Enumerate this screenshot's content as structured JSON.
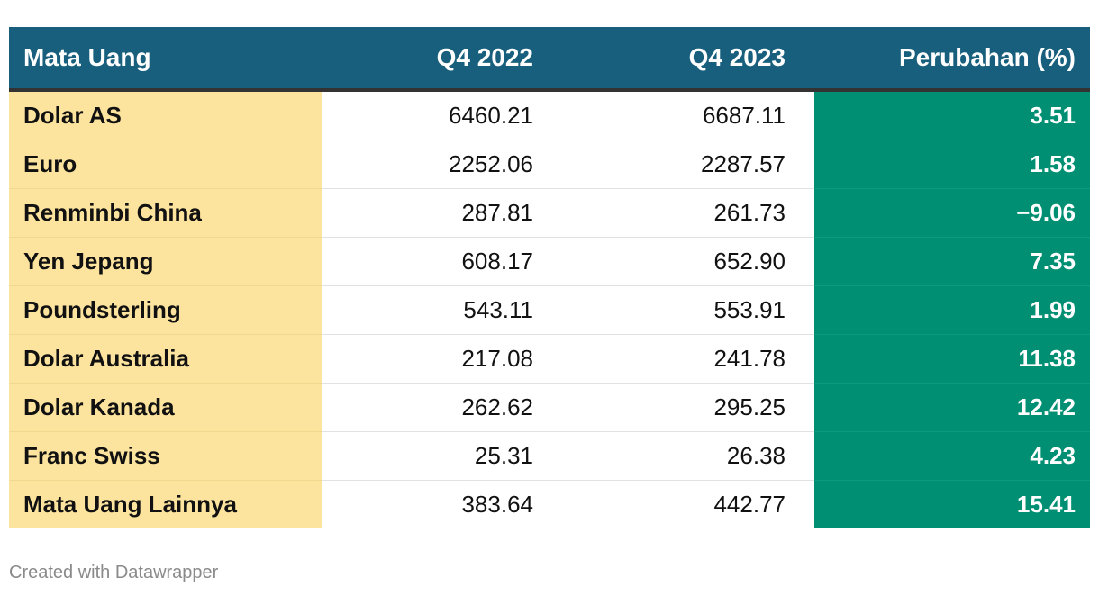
{
  "chart_data": {
    "type": "table",
    "columns": [
      "Mata Uang",
      "Q4 2022",
      "Q4 2023",
      "Perubahan (%)"
    ],
    "rows": [
      [
        "Dolar AS",
        "6460.21",
        "6687.11",
        "3.51"
      ],
      [
        "Euro",
        "2252.06",
        "2287.57",
        "1.58"
      ],
      [
        "Renminbi China",
        "287.81",
        "261.73",
        "−9.06"
      ],
      [
        "Yen Jepang",
        "608.17",
        "652.90",
        "7.35"
      ],
      [
        "Poundsterling",
        "543.11",
        "553.91",
        "1.99"
      ],
      [
        "Dolar Australia",
        "217.08",
        "241.78",
        "11.38"
      ],
      [
        "Dolar Kanada",
        "262.62",
        "295.25",
        "12.42"
      ],
      [
        "Franc Swiss",
        "25.31",
        "26.38",
        "4.23"
      ],
      [
        "Mata Uang Lainnya",
        "383.64",
        "442.77",
        "15.41"
      ]
    ],
    "colors": {
      "header_bg": "#175f7c",
      "name_column_bg": "#fde49e",
      "change_column_bg": "#008f72"
    }
  },
  "footer": "Created with Datawrapper"
}
